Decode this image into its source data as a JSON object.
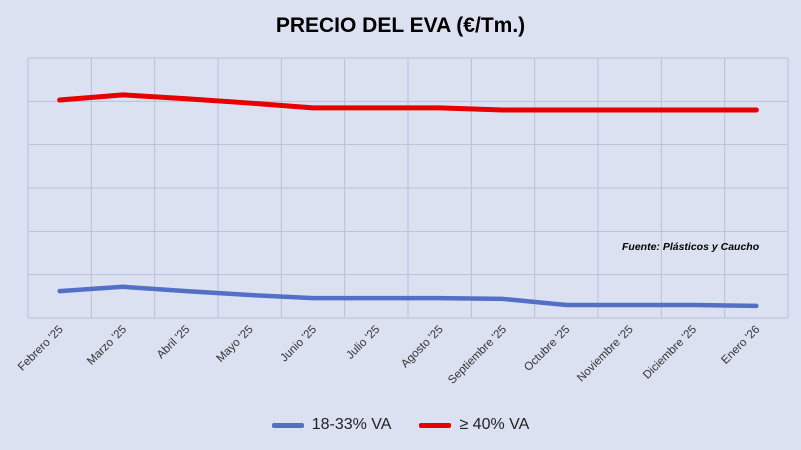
{
  "chart_data": {
    "type": "line",
    "title": "PRECIO DEL EVA (€/Tm.)",
    "xlabel": "",
    "ylabel": "",
    "note": "Fuente: Plásticos y Caucho",
    "y_axis_labels_shown": false,
    "ylim": [
      0,
      6
    ],
    "grid": true,
    "legend_position": "bottom",
    "categories": [
      "Febrero '25",
      "Marzo '25",
      "Abril '25",
      "Mayo '25",
      "Junio '25",
      "Julio '25",
      "Agosto '25",
      "Septiembre '25",
      "Octubre '25",
      "Noviembre '25",
      "Diciembre '25",
      "Enero '26"
    ],
    "series": [
      {
        "name": "18-33% VA",
        "color": "#5470c6",
        "values": [
          0.62,
          0.72,
          0.62,
          0.53,
          0.46,
          0.46,
          0.46,
          0.44,
          0.3,
          0.3,
          0.3,
          0.28
        ]
      },
      {
        "name": "≥ 40% VA",
        "color": "#e60000",
        "values": [
          5.03,
          5.15,
          5.06,
          4.96,
          4.85,
          4.85,
          4.85,
          4.8,
          4.8,
          4.8,
          4.8,
          4.8
        ]
      }
    ]
  }
}
